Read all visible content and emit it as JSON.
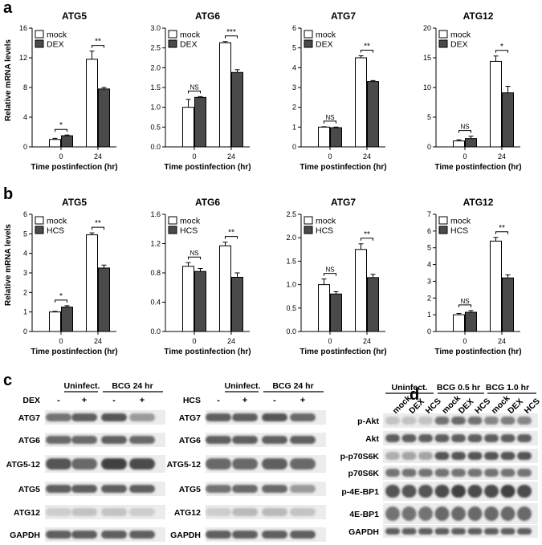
{
  "panels": {
    "a": "a",
    "b": "b",
    "c": "c",
    "d": "d"
  },
  "common": {
    "xlabel": "Time postinfection (hr)",
    "ylabel": "Relative mRNA levels",
    "colors": {
      "mock": "#ffffff",
      "treatment": "#4a4a4a",
      "stroke": "#000000"
    }
  },
  "chart_data": [
    {
      "panel": "a",
      "type": "bar",
      "title": "ATG5",
      "categories": [
        "0",
        "24"
      ],
      "ylim": [
        0,
        16
      ],
      "yticks": [
        0,
        4,
        8,
        12,
        16
      ],
      "series": [
        {
          "name": "mock",
          "values": [
            1.0,
            11.8
          ],
          "errors": [
            0.15,
            1.1
          ]
        },
        {
          "name": "DEX",
          "values": [
            1.5,
            7.8
          ],
          "errors": [
            0.1,
            0.2
          ]
        }
      ],
      "significance": [
        "*",
        "**"
      ]
    },
    {
      "panel": "a",
      "type": "bar",
      "title": "ATG6",
      "categories": [
        "0",
        "24"
      ],
      "ylim": [
        0,
        3.0
      ],
      "yticks": [
        0,
        0.5,
        1.0,
        1.5,
        2.0,
        2.5,
        3.0
      ],
      "series": [
        {
          "name": "mock",
          "values": [
            1.0,
            2.63
          ],
          "errors": [
            0.2,
            0.03
          ]
        },
        {
          "name": "DEX",
          "values": [
            1.25,
            1.88
          ],
          "errors": [
            0.02,
            0.07
          ]
        }
      ],
      "significance": [
        "NS",
        "***"
      ]
    },
    {
      "panel": "a",
      "type": "bar",
      "title": "ATG7",
      "categories": [
        "0",
        "24"
      ],
      "ylim": [
        0,
        6
      ],
      "yticks": [
        0,
        1,
        2,
        3,
        4,
        5,
        6
      ],
      "series": [
        {
          "name": "mock",
          "values": [
            1.0,
            4.5
          ],
          "errors": [
            0.02,
            0.1
          ]
        },
        {
          "name": "DEX",
          "values": [
            0.97,
            3.3
          ],
          "errors": [
            0.03,
            0.05
          ]
        }
      ],
      "significance": [
        "NS",
        "**"
      ]
    },
    {
      "panel": "a",
      "type": "bar",
      "title": "ATG12",
      "categories": [
        "0",
        "24"
      ],
      "ylim": [
        0,
        20
      ],
      "yticks": [
        0,
        5,
        10,
        15,
        20
      ],
      "series": [
        {
          "name": "mock",
          "values": [
            1.0,
            14.4
          ],
          "errors": [
            0.2,
            0.9
          ]
        },
        {
          "name": "DEX",
          "values": [
            1.4,
            9.1
          ],
          "errors": [
            0.4,
            1.1
          ]
        }
      ],
      "significance": [
        "NS",
        "*"
      ]
    },
    {
      "panel": "b",
      "type": "bar",
      "title": "ATG5",
      "categories": [
        "0",
        "24"
      ],
      "ylim": [
        0,
        6
      ],
      "yticks": [
        0,
        1,
        2,
        3,
        4,
        5,
        6
      ],
      "series": [
        {
          "name": "mock",
          "values": [
            1.0,
            4.95
          ],
          "errors": [
            0.03,
            0.1
          ]
        },
        {
          "name": "HCS",
          "values": [
            1.25,
            3.25
          ],
          "errors": [
            0.07,
            0.15
          ]
        }
      ],
      "significance": [
        "*",
        "**"
      ]
    },
    {
      "panel": "b",
      "type": "bar",
      "title": "ATG6",
      "categories": [
        "0",
        "24"
      ],
      "ylim": [
        0,
        1.6
      ],
      "yticks": [
        0,
        0.4,
        0.8,
        1.2,
        1.6
      ],
      "series": [
        {
          "name": "mock",
          "values": [
            0.89,
            1.17
          ],
          "errors": [
            0.05,
            0.05
          ]
        },
        {
          "name": "HCS",
          "values": [
            0.82,
            0.74
          ],
          "errors": [
            0.04,
            0.06
          ]
        }
      ],
      "significance": [
        "NS",
        "**"
      ]
    },
    {
      "panel": "b",
      "type": "bar",
      "title": "ATG7",
      "categories": [
        "0",
        "24"
      ],
      "ylim": [
        0,
        2.5
      ],
      "yticks": [
        0,
        0.5,
        1.0,
        1.5,
        2.0,
        2.5
      ],
      "series": [
        {
          "name": "mock",
          "values": [
            1.0,
            1.75
          ],
          "errors": [
            0.12,
            0.12
          ]
        },
        {
          "name": "HCS",
          "values": [
            0.8,
            1.15
          ],
          "errors": [
            0.05,
            0.07
          ]
        }
      ],
      "significance": [
        "NS",
        "**"
      ]
    },
    {
      "panel": "b",
      "type": "bar",
      "title": "ATG12",
      "categories": [
        "0",
        "24"
      ],
      "ylim": [
        0,
        7
      ],
      "yticks": [
        0,
        1,
        2,
        3,
        4,
        5,
        6,
        7
      ],
      "series": [
        {
          "name": "mock",
          "values": [
            1.0,
            5.4
          ],
          "errors": [
            0.08,
            0.22
          ]
        },
        {
          "name": "HCS",
          "values": [
            1.15,
            3.2
          ],
          "errors": [
            0.1,
            0.18
          ]
        }
      ],
      "significance": [
        "NS",
        "**"
      ]
    }
  ],
  "blots": {
    "c_left": {
      "groups": [
        "Uninfect.",
        "BCG 24 hr"
      ],
      "treatment": "DEX",
      "signs": [
        "-",
        "+",
        "-",
        "+"
      ],
      "rows": [
        "ATG7",
        "ATG6",
        "ATG5-12",
        "ATG5",
        "ATG12",
        "GAPDH"
      ]
    },
    "c_right": {
      "groups": [
        "Uninfect.",
        "BCG 24 hr"
      ],
      "treatment": "HCS",
      "signs": [
        "-",
        "+",
        "-",
        "+"
      ],
      "rows": [
        "ATG7",
        "ATG6",
        "ATG5-12",
        "ATG5",
        "ATG12",
        "GAPDH"
      ]
    },
    "d": {
      "groups": [
        "Uninfect.",
        "BCG 0.5 hr",
        "BCG 1.0 hr"
      ],
      "lanes": [
        "mock",
        "DEX",
        "HCS",
        "mock",
        "DEX",
        "HCS",
        "mock",
        "DEX",
        "HCS"
      ],
      "rows": [
        "p-Akt",
        "Akt",
        "p-p70S6K",
        "p70S6K",
        "p-4E-BP1",
        "4E-BP1",
        "GAPDH"
      ]
    }
  }
}
